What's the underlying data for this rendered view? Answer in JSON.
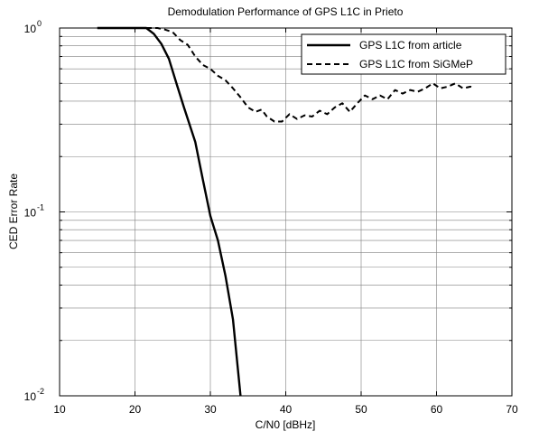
{
  "chart_data": {
    "type": "line",
    "title": "Demodulation Performance of GPS L1C in Prieto",
    "xlabel": "C/N0 [dBHz]",
    "ylabel": "CED Error Rate",
    "xlim": [
      10,
      70
    ],
    "ylim": [
      0.01,
      1
    ],
    "yscale": "log",
    "grid": true,
    "legend_position": "top-right",
    "x_ticks": [
      10,
      20,
      30,
      40,
      50,
      60,
      70
    ],
    "x_tick_labels": [
      "10",
      "20",
      "30",
      "40",
      "50",
      "60",
      "70"
    ],
    "y_ticks": [
      {
        "value": 1,
        "base": "10",
        "exp": "0"
      },
      {
        "value": 0.1,
        "base": "10",
        "exp": "-1"
      },
      {
        "value": 0.01,
        "base": "10",
        "exp": "-2"
      }
    ],
    "series": [
      {
        "name": "GPS L1C from article",
        "style": "solid",
        "color": "#000000",
        "points": [
          [
            15,
            1.0
          ],
          [
            20,
            1.0
          ],
          [
            21.5,
            1.0
          ],
          [
            22.5,
            0.93
          ],
          [
            23.5,
            0.82
          ],
          [
            24.5,
            0.68
          ],
          [
            25.5,
            0.5
          ],
          [
            26.5,
            0.37
          ],
          [
            28,
            0.24
          ],
          [
            29,
            0.15
          ],
          [
            30,
            0.095
          ],
          [
            31,
            0.07
          ],
          [
            32,
            0.045
          ],
          [
            33,
            0.026
          ],
          [
            34,
            0.01
          ]
        ]
      },
      {
        "name": "GPS L1C from SiGMeP",
        "style": "dashed",
        "color": "#000000",
        "points": [
          [
            21.5,
            1.0
          ],
          [
            23,
            1.0
          ],
          [
            24,
            0.98
          ],
          [
            25,
            0.95
          ],
          [
            26,
            0.86
          ],
          [
            27,
            0.81
          ],
          [
            28,
            0.7
          ],
          [
            29,
            0.63
          ],
          [
            30,
            0.6
          ],
          [
            31,
            0.55
          ],
          [
            32,
            0.52
          ],
          [
            33,
            0.47
          ],
          [
            34,
            0.42
          ],
          [
            35,
            0.37
          ],
          [
            36,
            0.35
          ],
          [
            36.8,
            0.36
          ],
          [
            37.5,
            0.33
          ],
          [
            38.5,
            0.31
          ],
          [
            39.5,
            0.31
          ],
          [
            40.5,
            0.34
          ],
          [
            41.5,
            0.32
          ],
          [
            42.5,
            0.335
          ],
          [
            43.5,
            0.33
          ],
          [
            44.5,
            0.355
          ],
          [
            45.5,
            0.34
          ],
          [
            46.5,
            0.37
          ],
          [
            47.5,
            0.39
          ],
          [
            48.5,
            0.35
          ],
          [
            49.5,
            0.39
          ],
          [
            50.5,
            0.43
          ],
          [
            51.5,
            0.41
          ],
          [
            52.5,
            0.43
          ],
          [
            53.5,
            0.41
          ],
          [
            54.5,
            0.46
          ],
          [
            55.5,
            0.44
          ],
          [
            56.5,
            0.46
          ],
          [
            57.5,
            0.45
          ],
          [
            58.5,
            0.47
          ],
          [
            59.5,
            0.5
          ],
          [
            60.5,
            0.47
          ],
          [
            61.5,
            0.48
          ],
          [
            62.5,
            0.5
          ],
          [
            63.5,
            0.47
          ],
          [
            64.5,
            0.48
          ],
          [
            65,
            0.47
          ]
        ]
      }
    ]
  }
}
